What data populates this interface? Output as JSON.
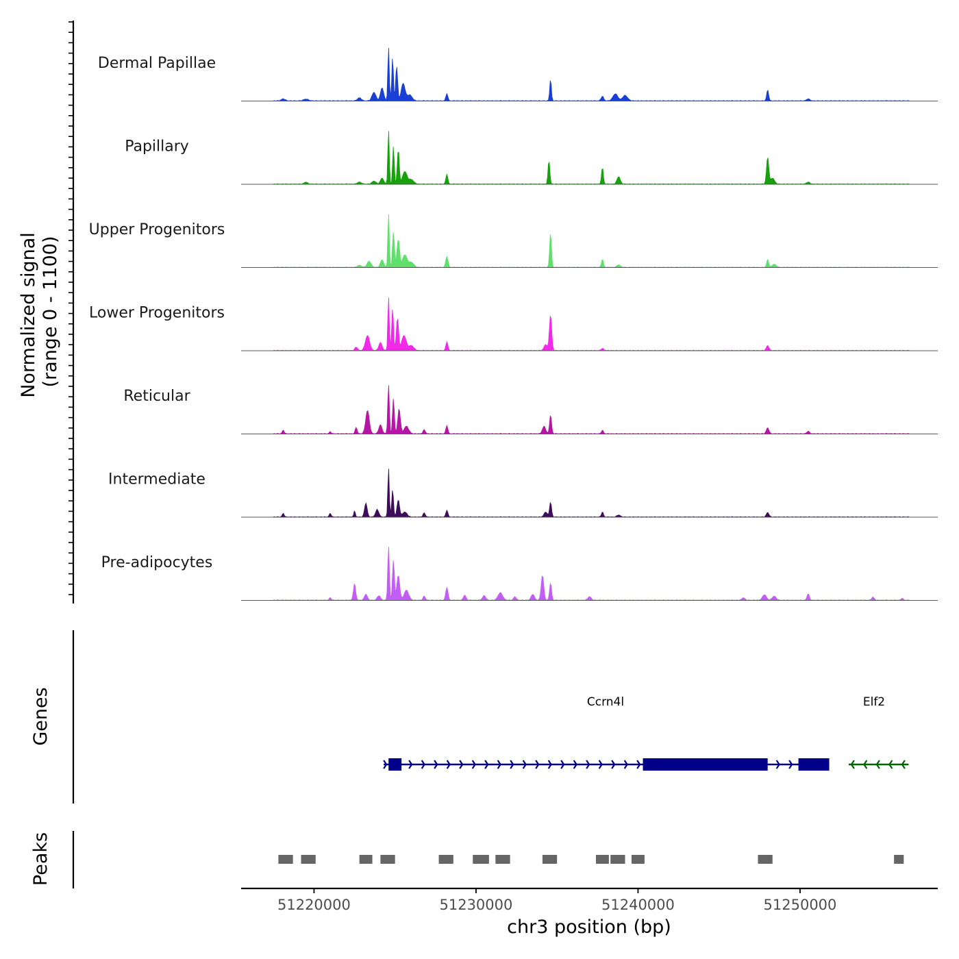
{
  "chart_data": {
    "type": "area",
    "title": "",
    "xlabel": "chr3 position (bp)",
    "ylabel": "Normalized signal",
    "ylabel_range": "(range 0 - 1100)",
    "ylim": [
      0,
      1100
    ],
    "xlim": [
      51215500,
      51258500
    ],
    "x_ticks": [
      51220000,
      51230000,
      51240000,
      51250000
    ],
    "x_tick_labels": [
      "51220000",
      "51230000",
      "51240000",
      "51250000"
    ],
    "tracks": [
      {
        "name": "Dermal Papillae",
        "color": "#1a3fd4",
        "peaks": [
          [
            51218100,
            40,
            120
          ],
          [
            51219500,
            35,
            150
          ],
          [
            51222800,
            60,
            120
          ],
          [
            51223700,
            170,
            120
          ],
          [
            51224200,
            260,
            100
          ],
          [
            51224600,
            1100,
            45
          ],
          [
            51224850,
            880,
            50
          ],
          [
            51225100,
            700,
            60
          ],
          [
            51225500,
            350,
            120
          ],
          [
            51225900,
            120,
            150
          ],
          [
            51228200,
            150,
            60
          ],
          [
            51234600,
            440,
            50
          ],
          [
            51237800,
            90,
            80
          ],
          [
            51238600,
            140,
            150
          ],
          [
            51239200,
            110,
            150
          ],
          [
            51248000,
            220,
            60
          ],
          [
            51250500,
            40,
            100
          ]
        ]
      },
      {
        "name": "Papillary",
        "color": "#17a10d",
        "peaks": [
          [
            51219500,
            40,
            100
          ],
          [
            51222800,
            40,
            120
          ],
          [
            51223700,
            60,
            120
          ],
          [
            51224200,
            120,
            100
          ],
          [
            51224600,
            1100,
            45
          ],
          [
            51224900,
            750,
            50
          ],
          [
            51225200,
            700,
            60
          ],
          [
            51225600,
            250,
            140
          ],
          [
            51226000,
            90,
            150
          ],
          [
            51228200,
            200,
            60
          ],
          [
            51234500,
            480,
            55
          ],
          [
            51237800,
            340,
            55
          ],
          [
            51238800,
            150,
            100
          ],
          [
            51248000,
            540,
            70
          ],
          [
            51248300,
            120,
            120
          ],
          [
            51250500,
            40,
            100
          ]
        ]
      },
      {
        "name": "Upper Progenitors",
        "color": "#5ee06a",
        "peaks": [
          [
            51222800,
            40,
            120
          ],
          [
            51223400,
            120,
            120
          ],
          [
            51224200,
            150,
            100
          ],
          [
            51224600,
            1100,
            45
          ],
          [
            51224900,
            700,
            60
          ],
          [
            51225200,
            560,
            80
          ],
          [
            51225600,
            250,
            140
          ],
          [
            51226000,
            100,
            150
          ],
          [
            51228200,
            220,
            70
          ],
          [
            51234600,
            700,
            55
          ],
          [
            51237800,
            160,
            60
          ],
          [
            51238800,
            50,
            100
          ],
          [
            51248000,
            160,
            60
          ],
          [
            51248400,
            60,
            120
          ]
        ]
      },
      {
        "name": "Lower Progenitors",
        "color": "#f12ae9",
        "peaks": [
          [
            51222600,
            70,
            80
          ],
          [
            51223300,
            300,
            130
          ],
          [
            51224100,
            160,
            100
          ],
          [
            51224600,
            1100,
            45
          ],
          [
            51224850,
            850,
            55
          ],
          [
            51225150,
            650,
            70
          ],
          [
            51225550,
            300,
            140
          ],
          [
            51226000,
            100,
            150
          ],
          [
            51228200,
            180,
            60
          ],
          [
            51234300,
            120,
            100
          ],
          [
            51234600,
            720,
            70
          ],
          [
            51237800,
            40,
            80
          ],
          [
            51248000,
            100,
            80
          ]
        ]
      },
      {
        "name": "Reticular",
        "color": "#b616a5",
        "peaks": [
          [
            51218100,
            70,
            60
          ],
          [
            51221000,
            40,
            60
          ],
          [
            51222600,
            130,
            60
          ],
          [
            51223300,
            470,
            110
          ],
          [
            51224100,
            180,
            100
          ],
          [
            51224600,
            1000,
            50
          ],
          [
            51224900,
            700,
            55
          ],
          [
            51225250,
            500,
            80
          ],
          [
            51225700,
            150,
            140
          ],
          [
            51226800,
            80,
            70
          ],
          [
            51228200,
            170,
            60
          ],
          [
            51234200,
            150,
            100
          ],
          [
            51234600,
            380,
            60
          ],
          [
            51237800,
            70,
            60
          ],
          [
            51248000,
            120,
            80
          ],
          [
            51250500,
            50,
            80
          ]
        ]
      },
      {
        "name": "Intermediate",
        "color": "#3d0d5c",
        "peaks": [
          [
            51218100,
            70,
            60
          ],
          [
            51221000,
            70,
            60
          ],
          [
            51222500,
            120,
            50
          ],
          [
            51223200,
            280,
            80
          ],
          [
            51223900,
            150,
            100
          ],
          [
            51224600,
            1000,
            45
          ],
          [
            51224850,
            550,
            55
          ],
          [
            51225200,
            340,
            80
          ],
          [
            51225600,
            100,
            140
          ],
          [
            51226800,
            80,
            70
          ],
          [
            51228200,
            140,
            60
          ],
          [
            51234300,
            100,
            100
          ],
          [
            51234600,
            300,
            60
          ],
          [
            51237800,
            100,
            60
          ],
          [
            51238800,
            40,
            100
          ],
          [
            51248000,
            90,
            80
          ]
        ]
      },
      {
        "name": "Pre-adipocytes",
        "color": "#c25ef5",
        "peaks": [
          [
            51221000,
            50,
            60
          ],
          [
            51222500,
            330,
            70
          ],
          [
            51223200,
            120,
            90
          ],
          [
            51224000,
            90,
            100
          ],
          [
            51224600,
            1100,
            50
          ],
          [
            51224900,
            800,
            60
          ],
          [
            51225200,
            500,
            90
          ],
          [
            51225700,
            200,
            140
          ],
          [
            51226800,
            80,
            70
          ],
          [
            51228200,
            260,
            70
          ],
          [
            51229300,
            100,
            80
          ],
          [
            51230500,
            90,
            100
          ],
          [
            51231500,
            150,
            140
          ],
          [
            51232400,
            70,
            80
          ],
          [
            51233500,
            120,
            100
          ],
          [
            51234100,
            500,
            80
          ],
          [
            51234600,
            350,
            60
          ],
          [
            51237000,
            70,
            100
          ],
          [
            51246500,
            50,
            90
          ],
          [
            51247800,
            110,
            120
          ],
          [
            51248400,
            80,
            120
          ],
          [
            51250500,
            130,
            70
          ],
          [
            51254500,
            60,
            80
          ],
          [
            51256300,
            40,
            60
          ]
        ]
      }
    ],
    "genes": [
      {
        "name": "Ccrn4l",
        "strand": "+",
        "color": "#00008b",
        "start": 51224300,
        "end": 51251800,
        "exons": [
          [
            51224600,
            51225400
          ],
          [
            51240300,
            51248000
          ],
          [
            51249900,
            51251800
          ]
        ]
      },
      {
        "name": "Elf2",
        "strand": "-",
        "color": "#006400",
        "start": 51253000,
        "end": 51256700,
        "exons": []
      }
    ],
    "peaks": [
      [
        51217800,
        51218700
      ],
      [
        51219200,
        51220100
      ],
      [
        51222800,
        51223600
      ],
      [
        51224100,
        51225000
      ],
      [
        51227700,
        51228600
      ],
      [
        51229800,
        51230800
      ],
      [
        51231200,
        51232100
      ],
      [
        51234100,
        51235000
      ],
      [
        51237400,
        51238200
      ],
      [
        51238300,
        51239200
      ],
      [
        51239600,
        51240400
      ],
      [
        51247400,
        51248300
      ],
      [
        51255800,
        51256400
      ]
    ]
  },
  "panels": {
    "genes_title": "Genes",
    "peaks_title": "Peaks"
  }
}
